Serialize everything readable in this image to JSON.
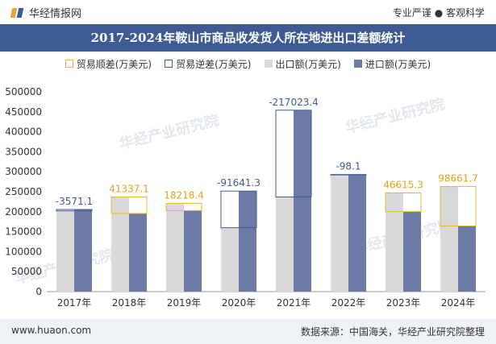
{
  "header": {
    "brand": "华经情报网",
    "tagline": "专业严谨 ● 客观科学"
  },
  "title": "2017-2024年鞍山市商品收发货人所在地进出口差额统计",
  "legend": [
    {
      "label": "贸易顺差(万美元)",
      "color": "#f0b429",
      "kind": "outline"
    },
    {
      "label": "贸易逆差(万美元)",
      "color": "#3f5b93",
      "kind": "outline"
    },
    {
      "label": "出口额(万美元)",
      "color": "#d9d9d9",
      "kind": "fill"
    },
    {
      "label": "进口额(万美元)",
      "color": "#6b7ba6",
      "kind": "fill"
    }
  ],
  "watermark": "华经产业研究院",
  "chart_data": {
    "type": "bar",
    "categories": [
      "2017年",
      "2018年",
      "2019年",
      "2020年",
      "2021年",
      "2022年",
      "2023年",
      "2024年"
    ],
    "series": [
      {
        "name": "出口额(万美元)",
        "values": [
          202000,
          237000,
          221000,
          160000,
          237000,
          293000,
          247000,
          263000
        ]
      },
      {
        "name": "进口额(万美元)",
        "values": [
          205571.1,
          195662.9,
          202781.6,
          251641.3,
          454023.4,
          293098.1,
          200384.7,
          164338.3
        ]
      }
    ],
    "balance": [
      -3571.1,
      41337.1,
      18218.4,
      -91641.3,
      -217023.4,
      -98.1,
      46615.3,
      98661.7
    ],
    "balance_labels": [
      "-3571.1",
      "41337.1",
      "18218.4",
      "-91641.3",
      "-217023.4",
      "-98.1",
      "46615.3",
      "98661.7"
    ],
    "ylim": [
      0,
      500000
    ],
    "yticks": [
      0,
      50000,
      100000,
      150000,
      200000,
      250000,
      300000,
      350000,
      400000,
      450000,
      500000
    ],
    "colors": {
      "export": "#d9d9d9",
      "import": "#6b7ba6",
      "surplus": "#f0b429",
      "deficit": "#3f5b93",
      "surplus_label": "#e0a21c",
      "deficit_label": "#3f5b93"
    }
  },
  "footer": {
    "site": "www.huaon.com",
    "source": "数据来源：中国海关，华经产业研究院整理"
  }
}
